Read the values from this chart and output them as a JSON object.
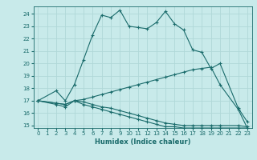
{
  "title": "",
  "xlabel": "Humidex (Indice chaleur)",
  "bg_color": "#c8eaea",
  "line_color": "#1a6b6b",
  "grid_color": "#b0d8d8",
  "ylim": [
    14.8,
    24.6
  ],
  "xlim": [
    -0.5,
    23.5
  ],
  "yticks": [
    15,
    16,
    17,
    18,
    19,
    20,
    21,
    22,
    23,
    24
  ],
  "xticks": [
    0,
    1,
    2,
    3,
    4,
    5,
    6,
    7,
    8,
    9,
    10,
    11,
    12,
    13,
    14,
    15,
    16,
    17,
    18,
    19,
    20,
    21,
    22,
    23
  ],
  "series": [
    {
      "x": [
        0,
        2,
        3,
        4,
        5,
        6,
        7,
        8,
        9,
        10,
        11,
        12,
        13,
        14,
        15,
        16,
        17,
        18,
        19,
        20,
        22,
        23
      ],
      "y": [
        17.0,
        17.8,
        17.0,
        18.3,
        20.3,
        22.3,
        23.9,
        23.7,
        24.3,
        23.0,
        22.9,
        22.8,
        23.3,
        24.2,
        23.2,
        22.7,
        21.1,
        20.9,
        19.6,
        20.0,
        16.4,
        15.3
      ]
    },
    {
      "x": [
        0,
        2,
        3,
        4,
        5,
        6,
        7,
        8,
        9,
        10,
        11,
        12,
        13,
        14,
        15,
        16,
        17,
        18,
        19,
        20,
        22,
        23
      ],
      "y": [
        17.0,
        16.8,
        16.7,
        17.0,
        17.1,
        17.3,
        17.5,
        17.7,
        17.9,
        18.1,
        18.3,
        18.5,
        18.7,
        18.9,
        19.1,
        19.3,
        19.5,
        19.6,
        19.7,
        18.3,
        16.3,
        14.8
      ]
    },
    {
      "x": [
        0,
        2,
        3,
        4,
        5,
        6,
        7,
        8,
        9,
        10,
        11,
        12,
        13,
        14,
        15,
        16,
        17,
        18,
        19,
        20,
        22,
        23
      ],
      "y": [
        17.0,
        16.8,
        16.7,
        17.0,
        16.9,
        16.7,
        16.5,
        16.4,
        16.2,
        16.0,
        15.8,
        15.6,
        15.4,
        15.2,
        15.1,
        15.0,
        15.0,
        15.0,
        15.0,
        15.0,
        15.0,
        14.9
      ]
    },
    {
      "x": [
        0,
        2,
        3,
        4,
        5,
        6,
        7,
        8,
        9,
        10,
        11,
        12,
        13,
        14,
        15,
        16,
        17,
        18,
        19,
        20,
        22,
        23
      ],
      "y": [
        17.0,
        16.7,
        16.5,
        17.0,
        16.7,
        16.5,
        16.3,
        16.1,
        15.9,
        15.7,
        15.5,
        15.3,
        15.1,
        14.9,
        14.9,
        14.8,
        14.8,
        14.8,
        14.8,
        14.8,
        14.8,
        14.8
      ]
    }
  ]
}
